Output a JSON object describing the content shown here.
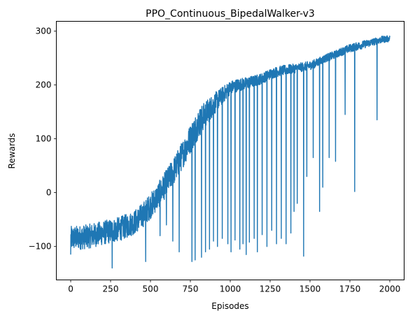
{
  "chart_data": {
    "type": "line",
    "title": "PPO_Continuous_BipedalWalker-v3",
    "xlabel": "Episodes",
    "ylabel": "Rewards",
    "xlim": [
      -90,
      2090
    ],
    "ylim": [
      -162,
      318
    ],
    "x_ticks": [
      0,
      250,
      500,
      750,
      1000,
      1250,
      1500,
      1750,
      2000
    ],
    "y_ticks": [
      -100,
      0,
      100,
      200,
      300
    ],
    "x_tick_labels": [
      "0",
      "250",
      "500",
      "750",
      "1000",
      "1250",
      "1500",
      "1750",
      "2000"
    ],
    "y_tick_labels": [
      "−100",
      "0",
      "100",
      "200",
      "300"
    ],
    "grid": false,
    "series": [
      {
        "name": "Rewards",
        "color": "#1f77b4",
        "trend": {
          "x": [
            0,
            100,
            200,
            300,
            350,
            400,
            450,
            500,
            550,
            600,
            650,
            700,
            750,
            800,
            850,
            900,
            950,
            1000,
            1050,
            1100,
            1150,
            1200,
            1250,
            1300,
            1350,
            1400,
            1450,
            1500,
            1550,
            1600,
            1650,
            1700,
            1750,
            1800,
            1850,
            1900,
            1950,
            2000
          ],
          "y": [
            -85,
            -82,
            -75,
            -68,
            -62,
            -55,
            -42,
            -25,
            -5,
            18,
            42,
            70,
            100,
            128,
            148,
            165,
            180,
            195,
            200,
            203,
            207,
            212,
            220,
            225,
            228,
            230,
            233,
            236,
            242,
            250,
            255,
            262,
            268,
            272,
            276,
            280,
            284,
            286
          ]
        },
        "noise_band": {
          "x": [
            0,
            200,
            400,
            600,
            800,
            1000,
            1200,
            1400,
            1600,
            1800,
            2000
          ],
          "width": [
            45,
            45,
            45,
            50,
            55,
            25,
            20,
            18,
            15,
            15,
            12
          ]
        },
        "dips": [
          {
            "x": 0,
            "y": -115
          },
          {
            "x": 260,
            "y": -140
          },
          {
            "x": 470,
            "y": -128
          },
          {
            "x": 560,
            "y": -80
          },
          {
            "x": 600,
            "y": -60
          },
          {
            "x": 640,
            "y": -90
          },
          {
            "x": 680,
            "y": -110
          },
          {
            "x": 760,
            "y": -128
          },
          {
            "x": 780,
            "y": -125
          },
          {
            "x": 820,
            "y": -120
          },
          {
            "x": 845,
            "y": -110
          },
          {
            "x": 870,
            "y": -105
          },
          {
            "x": 895,
            "y": -90
          },
          {
            "x": 920,
            "y": -100
          },
          {
            "x": 950,
            "y": -85
          },
          {
            "x": 985,
            "y": -95
          },
          {
            "x": 1005,
            "y": -110
          },
          {
            "x": 1030,
            "y": -88
          },
          {
            "x": 1060,
            "y": -105
          },
          {
            "x": 1080,
            "y": -95
          },
          {
            "x": 1100,
            "y": -115
          },
          {
            "x": 1120,
            "y": -92
          },
          {
            "x": 1150,
            "y": -85
          },
          {
            "x": 1170,
            "y": -110
          },
          {
            "x": 1200,
            "y": -78
          },
          {
            "x": 1230,
            "y": -100
          },
          {
            "x": 1260,
            "y": -70
          },
          {
            "x": 1290,
            "y": -95
          },
          {
            "x": 1320,
            "y": -85
          },
          {
            "x": 1350,
            "y": -95
          },
          {
            "x": 1380,
            "y": -75
          },
          {
            "x": 1400,
            "y": -35
          },
          {
            "x": 1420,
            "y": -20
          },
          {
            "x": 1460,
            "y": -118
          },
          {
            "x": 1480,
            "y": 30
          },
          {
            "x": 1520,
            "y": 65
          },
          {
            "x": 1560,
            "y": -35
          },
          {
            "x": 1580,
            "y": 10
          },
          {
            "x": 1620,
            "y": 65
          },
          {
            "x": 1660,
            "y": 58
          },
          {
            "x": 1720,
            "y": 145
          },
          {
            "x": 1780,
            "y": 2
          },
          {
            "x": 1920,
            "y": 135
          }
        ]
      }
    ]
  }
}
